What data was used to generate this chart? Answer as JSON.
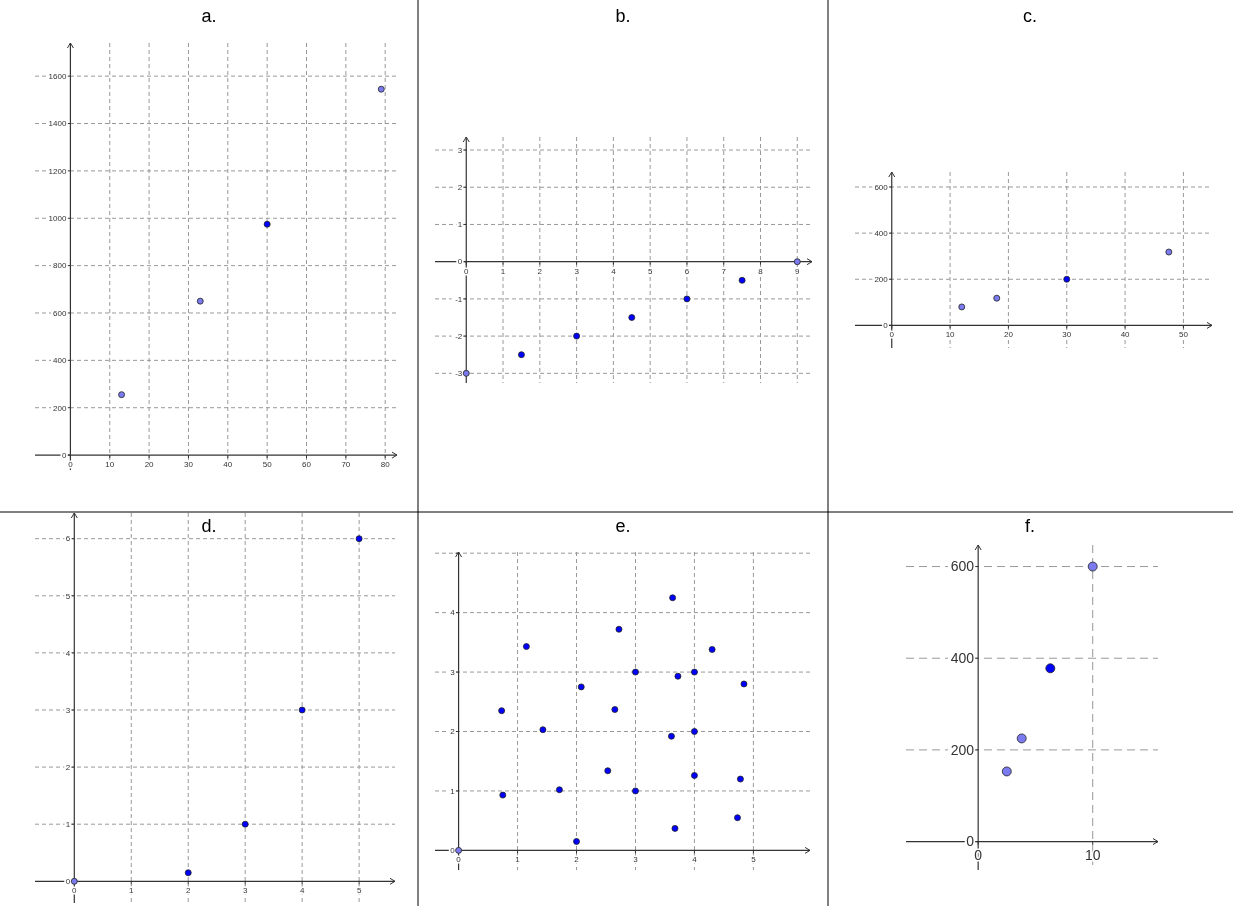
{
  "chart_data": [
    {
      "type": "scatter",
      "title": "a.",
      "xlim": [
        -9,
        83
      ],
      "ylim": [
        -63,
        1740
      ],
      "xticks": [
        0,
        10,
        20,
        30,
        40,
        50,
        60,
        70,
        80
      ],
      "yticks": [
        0,
        200,
        400,
        600,
        800,
        1000,
        1200,
        1400,
        1600
      ],
      "grid": true,
      "marker": "circle",
      "series": [
        {
          "x": [
            13,
            33,
            50,
            79
          ],
          "values": [
            255,
            650,
            975,
            1545
          ],
          "colors": [
            "#7b7bef",
            "#7b7bef",
            "#0000ff",
            "#7b7bef"
          ]
        }
      ]
    },
    {
      "type": "scatter",
      "title": "b.",
      "xlim": [
        -0.85,
        9.4
      ],
      "ylim": [
        -3.26,
        3.35
      ],
      "xticks": [
        0,
        1,
        2,
        3,
        4,
        5,
        6,
        7,
        8,
        9
      ],
      "yticks": [
        -3,
        -2,
        -1,
        0,
        1,
        2,
        3
      ],
      "grid": true,
      "marker": "circle",
      "series": [
        {
          "x": [
            0,
            1.5,
            3,
            4.5,
            6,
            7.5,
            9
          ],
          "values": [
            -3,
            -2.5,
            -2,
            -1.5,
            -1,
            -0.5,
            0
          ],
          "colors": [
            "#7b7bef",
            "#0000ff",
            "#0000ff",
            "#0000ff",
            "#0000ff",
            "#0000ff",
            "#7b7bef"
          ]
        }
      ]
    },
    {
      "type": "scatter",
      "title": "c.",
      "xlim": [
        -6.3,
        54.9
      ],
      "ylim": [
        -98,
        665
      ],
      "xticks": [
        0,
        10,
        20,
        30,
        40,
        50
      ],
      "yticks": [
        0,
        200,
        400,
        600
      ],
      "grid": true,
      "marker": "circle",
      "series": [
        {
          "x": [
            12,
            18,
            30,
            47.5
          ],
          "values": [
            80,
            118,
            200,
            318
          ],
          "colors": [
            "#7b7bef",
            "#7b7bef",
            "#0000ff",
            "#7b7bef"
          ]
        }
      ]
    },
    {
      "type": "scatter",
      "title": "d.",
      "xlim": [
        -0.69,
        5.63
      ],
      "ylim": [
        -0.38,
        6.45
      ],
      "xticks": [
        0,
        1,
        2,
        3,
        4,
        5
      ],
      "yticks": [
        0,
        1,
        2,
        3,
        4,
        5,
        6
      ],
      "grid": true,
      "marker": "circle",
      "series": [
        {
          "x": [
            0,
            2,
            3,
            4,
            5
          ],
          "values": [
            0,
            0.15,
            1,
            3,
            6
          ],
          "colors": [
            "#7b7bef",
            "#0000ff",
            "#0000ff",
            "#0000ff",
            "#0000ff"
          ]
        }
      ]
    },
    {
      "type": "scatter",
      "title": "e.",
      "xlim": [
        -0.4,
        5.96
      ],
      "ylim": [
        -0.33,
        5.02
      ],
      "xticks": [
        0,
        1,
        2,
        3,
        4,
        5
      ],
      "yticks": [
        0,
        1,
        2,
        3,
        4,
        {
          "value": 5,
          "label": null
        }
      ],
      "grid": true,
      "marker": "circle",
      "series": [
        {
          "x": [
            0,
            0.73,
            0.75,
            1.15,
            1.43,
            1.71,
            2,
            2.08,
            2.53,
            2.65,
            2.72,
            3,
            3,
            3.63,
            3.61,
            3.72,
            3.67,
            4,
            4,
            4,
            4.3,
            4.84,
            4.78,
            4.73
          ],
          "values": [
            0,
            2.35,
            0.93,
            3.43,
            2.03,
            1.02,
            0.15,
            2.75,
            1.34,
            2.37,
            3.72,
            3,
            1,
            4.25,
            1.92,
            2.93,
            0.37,
            3,
            2,
            1.26,
            3.38,
            2.8,
            1.2,
            0.55
          ],
          "colors": [
            "#7b7bef",
            "#0000ff",
            "#0000ff",
            "#0000ff",
            "#0000ff",
            "#0000ff",
            "#0000ff",
            "#0000ff",
            "#0000ff",
            "#0000ff",
            "#0000ff",
            "#0000ff",
            "#0000ff",
            "#0000ff",
            "#0000ff",
            "#0000ff",
            "#0000ff",
            "#0000ff",
            "#0000ff",
            "#0000ff",
            "#0000ff",
            "#0000ff",
            "#0000ff",
            "#0000ff"
          ]
        }
      ]
    },
    {
      "type": "scatter",
      "title": "f.",
      "xlim": [
        -6.3,
        15.7
      ],
      "ylim": [
        -62,
        647
      ],
      "xticks": [
        0,
        10
      ],
      "yticks": [
        0,
        200,
        400,
        600
      ],
      "grid": true,
      "marker": "circle",
      "series": [
        {
          "x": [
            2.5,
            3.8,
            6.3,
            10
          ],
          "values": [
            153,
            225,
            378,
            600
          ],
          "colors": [
            "#7b7bef",
            "#7b7bef",
            "#0000ff",
            "#7b7bef"
          ]
        }
      ]
    }
  ]
}
